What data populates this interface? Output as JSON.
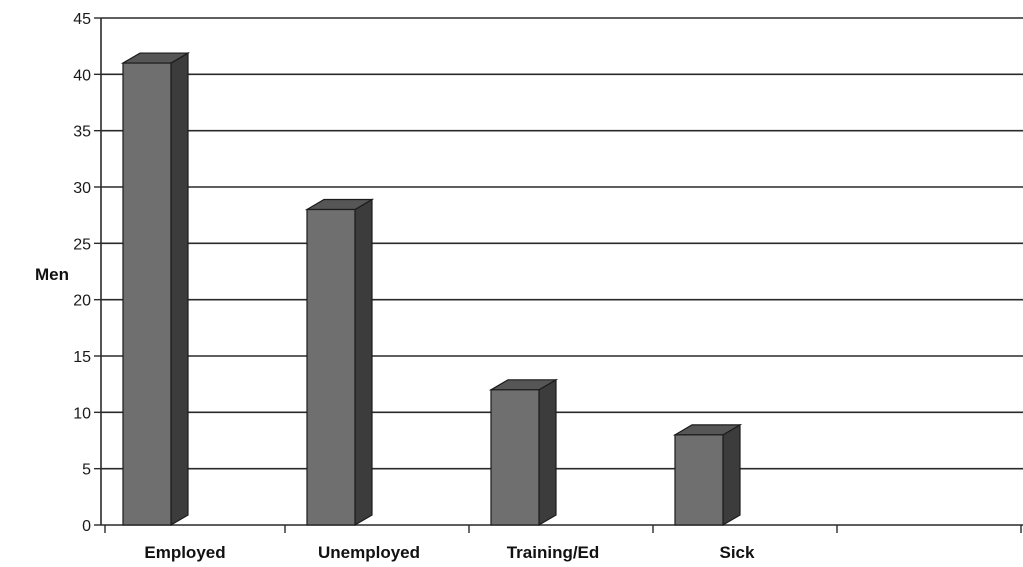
{
  "chart_data": {
    "type": "bar",
    "title": "",
    "xlabel": "",
    "ylabel": "Men",
    "categories": [
      "Employed",
      "Unemployed",
      "Training/Ed",
      "Sick",
      ""
    ],
    "values": [
      41,
      28,
      12,
      8,
      null
    ],
    "ylim": [
      0,
      45
    ],
    "yticks": [
      0,
      5,
      10,
      15,
      20,
      25,
      30,
      35,
      40,
      45
    ],
    "grid": true,
    "legend": "none",
    "bar_style": "3d",
    "colors": {
      "bar_front": "#6f6f6f",
      "bar_side": "#3c3c3c",
      "bar_top": "#565656",
      "bar_outline": "#1c1c1c",
      "gridline": "#2a2a2a",
      "background": "#ffffff"
    }
  }
}
